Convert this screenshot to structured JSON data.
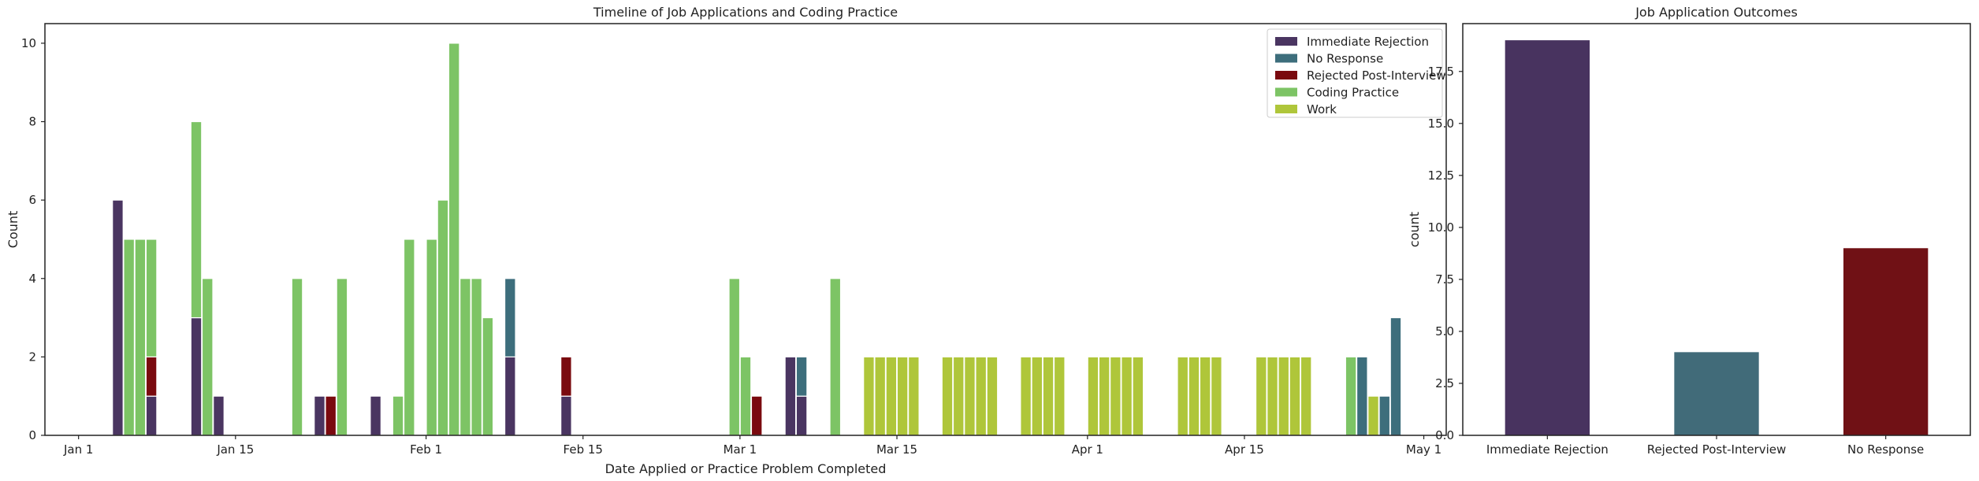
{
  "chart_data": [
    {
      "type": "bar",
      "stacked": true,
      "title": "Timeline of Job Applications and Coding Practice",
      "xlabel": "Date Applied or Practice Problem Completed",
      "ylabel": "Count",
      "xlim": [
        "2024-12-29",
        "2025-05-03"
      ],
      "ylim": [
        0,
        10.5
      ],
      "yticks": [
        0,
        2,
        4,
        6,
        8,
        10
      ],
      "xticks": [
        {
          "date": "2025-01-01",
          "label": "Jan 1"
        },
        {
          "date": "2025-01-15",
          "label": "Jan 15"
        },
        {
          "date": "2025-02-01",
          "label": "Feb 1"
        },
        {
          "date": "2025-02-15",
          "label": "Feb 15"
        },
        {
          "date": "2025-03-01",
          "label": "Mar 1"
        },
        {
          "date": "2025-03-15",
          "label": "Mar 15"
        },
        {
          "date": "2025-04-01",
          "label": "Apr 1"
        },
        {
          "date": "2025-04-15",
          "label": "Apr 15"
        },
        {
          "date": "2025-05-01",
          "label": "May 1"
        }
      ],
      "grid": false,
      "legend_position": "top-right",
      "x": [
        "2025-01-04",
        "2025-01-05",
        "2025-01-06",
        "2025-01-07",
        "2025-01-11",
        "2025-01-12",
        "2025-01-13",
        "2025-01-20",
        "2025-01-21",
        "2025-01-22",
        "2025-01-23",
        "2025-01-24",
        "2025-01-26",
        "2025-01-27",
        "2025-01-28",
        "2025-01-29",
        "2025-01-30",
        "2025-02-01",
        "2025-02-02",
        "2025-02-03",
        "2025-02-04",
        "2025-02-05",
        "2025-02-06",
        "2025-02-08",
        "2025-02-13",
        "2025-02-28",
        "2025-03-01",
        "2025-03-02",
        "2025-03-05",
        "2025-03-06",
        "2025-03-09",
        "2025-03-12",
        "2025-03-13",
        "2025-03-14",
        "2025-03-15",
        "2025-03-16",
        "2025-03-19",
        "2025-03-20",
        "2025-03-21",
        "2025-03-22",
        "2025-03-23",
        "2025-03-26",
        "2025-03-27",
        "2025-03-28",
        "2025-03-29",
        "2025-04-01",
        "2025-04-02",
        "2025-04-03",
        "2025-04-04",
        "2025-04-05",
        "2025-04-09",
        "2025-04-10",
        "2025-04-11",
        "2025-04-12",
        "2025-04-16",
        "2025-04-17",
        "2025-04-18",
        "2025-04-19",
        "2025-04-20",
        "2025-04-24",
        "2025-04-25",
        "2025-04-26",
        "2025-04-27",
        "2025-04-28"
      ],
      "series": [
        {
          "name": "Immediate Rejection",
          "color": "#4a3561",
          "values": [
            6,
            0,
            0,
            1,
            3,
            0,
            1,
            0,
            0,
            1,
            0,
            0,
            0,
            1,
            0,
            0,
            0,
            0,
            0,
            0,
            0,
            0,
            0,
            2,
            1,
            0,
            0,
            0,
            2,
            1,
            0,
            0,
            0,
            0,
            0,
            0,
            0,
            0,
            0,
            0,
            0,
            0,
            0,
            0,
            0,
            0,
            0,
            0,
            0,
            0,
            0,
            0,
            0,
            0,
            0,
            0,
            0,
            0,
            0,
            0,
            0,
            0,
            0,
            0
          ]
        },
        {
          "name": "No Response",
          "color": "#3d6e7c",
          "values": [
            0,
            0,
            0,
            0,
            0,
            0,
            0,
            0,
            0,
            0,
            0,
            0,
            0,
            0,
            0,
            0,
            0,
            0,
            0,
            0,
            0,
            0,
            0,
            2,
            0,
            0,
            0,
            0,
            0,
            1,
            0,
            0,
            0,
            0,
            0,
            0,
            0,
            0,
            0,
            0,
            0,
            0,
            0,
            0,
            0,
            0,
            0,
            0,
            0,
            0,
            0,
            0,
            0,
            0,
            0,
            0,
            0,
            0,
            0,
            0,
            2,
            0,
            1,
            3
          ]
        },
        {
          "name": "Rejected Post-Interview",
          "color": "#7a0a0f",
          "values": [
            0,
            0,
            0,
            1,
            0,
            0,
            0,
            0,
            0,
            0,
            1,
            0,
            0,
            0,
            0,
            0,
            0,
            0,
            0,
            0,
            0,
            0,
            0,
            0,
            1,
            0,
            0,
            1,
            0,
            0,
            0,
            0,
            0,
            0,
            0,
            0,
            0,
            0,
            0,
            0,
            0,
            0,
            0,
            0,
            0,
            0,
            0,
            0,
            0,
            0,
            0,
            0,
            0,
            0,
            0,
            0,
            0,
            0,
            0,
            0,
            0,
            0,
            0,
            0
          ]
        },
        {
          "name": "Coding Practice",
          "color": "#7dc465",
          "values": [
            0,
            5,
            5,
            3,
            5,
            4,
            0,
            4,
            0,
            0,
            0,
            4,
            0,
            0,
            0,
            1,
            5,
            5,
            6,
            10,
            4,
            4,
            3,
            0,
            0,
            4,
            2,
            0,
            0,
            0,
            4,
            0,
            0,
            0,
            0,
            0,
            0,
            0,
            0,
            0,
            0,
            0,
            0,
            0,
            0,
            0,
            0,
            0,
            0,
            0,
            0,
            0,
            0,
            0,
            0,
            0,
            0,
            0,
            0,
            2,
            0,
            0,
            0,
            0
          ]
        },
        {
          "name": "Work",
          "color": "#afc63a",
          "values": [
            0,
            0,
            0,
            0,
            0,
            0,
            0,
            0,
            0,
            0,
            0,
            0,
            0,
            0,
            0,
            0,
            0,
            0,
            0,
            0,
            0,
            0,
            0,
            0,
            0,
            0,
            0,
            0,
            0,
            0,
            0,
            2,
            2,
            2,
            2,
            2,
            2,
            2,
            2,
            2,
            2,
            2,
            2,
            2,
            2,
            2,
            2,
            2,
            2,
            2,
            2,
            2,
            2,
            2,
            2,
            2,
            2,
            2,
            2,
            0,
            0,
            1,
            0,
            0
          ]
        }
      ]
    },
    {
      "type": "bar",
      "title": "Job Application Outcomes",
      "xlabel": "",
      "ylabel": "count",
      "categories": [
        "Immediate Rejection",
        "Rejected Post-Interview",
        "No Response"
      ],
      "values": [
        19,
        4,
        9
      ],
      "colors": [
        "#48335f",
        "#416b79",
        "#701115"
      ],
      "ylim": [
        0,
        19.8
      ],
      "yticks": [
        0.0,
        2.5,
        5.0,
        7.5,
        10.0,
        12.5,
        15.0,
        17.5
      ],
      "ytick_labels": [
        "0.0",
        "2.5",
        "5.0",
        "7.5",
        "10.0",
        "12.5",
        "15.0",
        "17.5"
      ],
      "grid": false
    }
  ]
}
